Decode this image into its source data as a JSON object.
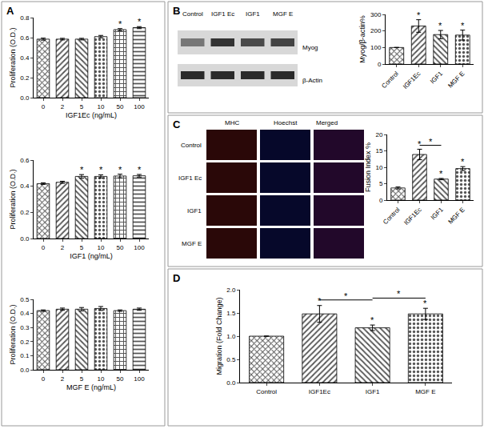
{
  "chart_data": [
    {
      "type": "bar",
      "xlabel": "IGF1Ec (ng/mL)",
      "ylabel": "Proliferation (O.D.)",
      "categories": [
        "0",
        "2",
        "5",
        "10",
        "50",
        "100"
      ],
      "values": [
        0.585,
        0.585,
        0.585,
        0.61,
        0.68,
        0.7
      ],
      "errors": [
        0.01,
        0.008,
        0.008,
        0.012,
        0.01,
        0.01
      ],
      "significance": [
        null,
        null,
        null,
        null,
        "*",
        "*"
      ],
      "ylim": [
        0,
        0.8
      ],
      "yticks": [
        {
          "value": 0,
          "label": "0.0"
        },
        0.2,
        0.4,
        0.6,
        0.8
      ],
      "color": "#555555",
      "grid": false
    },
    {
      "type": "bar",
      "xlabel": "IGF1 (ng/mL)",
      "ylabel": "Proliferation (O.D.)",
      "categories": [
        "0",
        "2",
        "5",
        "10",
        "50",
        "100"
      ],
      "values": [
        0.42,
        0.43,
        0.475,
        0.475,
        0.478,
        0.48
      ],
      "errors": [
        0.006,
        0.008,
        0.014,
        0.012,
        0.014,
        0.01
      ],
      "significance": [
        null,
        null,
        "*",
        "*",
        "*",
        "*"
      ],
      "ylim": [
        0,
        0.6
      ],
      "yticks": [
        {
          "value": 0,
          "label": "0.0"
        },
        0.2,
        0.4,
        0.6
      ],
      "color": "#555555",
      "grid": false
    },
    {
      "type": "bar",
      "xlabel": "MGF E (ng/mL)",
      "ylabel": "Proliferation (O.D.)",
      "categories": [
        "0",
        "2",
        "5",
        "10",
        "50",
        "100"
      ],
      "values": [
        0.42,
        0.43,
        0.43,
        0.435,
        0.42,
        0.43
      ],
      "errors": [
        0.005,
        0.008,
        0.012,
        0.014,
        0.005,
        0.008
      ],
      "ylim": [
        0,
        0.5
      ],
      "yticks": [
        {
          "value": 0,
          "label": "0.0"
        },
        0.1,
        0.2,
        0.3,
        0.4,
        0.5
      ],
      "color": "#555555",
      "grid": false
    },
    {
      "type": "bar",
      "ylabel": "Myog/β-actin%",
      "categories": [
        "Control",
        "IGF1Ec",
        "IGF1",
        "MGF E"
      ],
      "values": [
        100,
        230,
        178,
        175
      ],
      "errors": [
        0,
        38,
        25,
        30
      ],
      "significance": [
        null,
        "*",
        "*",
        "*"
      ],
      "ylim": [
        0,
        300
      ],
      "yticks": [
        0,
        100,
        200,
        300
      ],
      "color": "#555555",
      "grid": false
    },
    {
      "type": "bar",
      "ylabel": "Fusion Index %",
      "categories": [
        "Control",
        "IGF1Ec",
        "IGF1",
        "MGF E"
      ],
      "values": [
        3.7,
        13.9,
        6.4,
        9.6
      ],
      "errors": [
        0.3,
        1.6,
        0.2,
        0.6
      ],
      "significance": [
        null,
        "*",
        "*",
        "*"
      ],
      "comparisons": [
        {
          "from": "IGF1Ec",
          "to": "IGF1",
          "label": "*"
        }
      ],
      "ylim": [
        0,
        20
      ],
      "yticks": [
        0,
        5,
        10,
        15,
        20
      ],
      "color": "#555555",
      "grid": false
    },
    {
      "type": "bar",
      "ylabel": "Migration (Fold Change)",
      "categories": [
        "Control",
        "IGF1Ec",
        "IGF1",
        "MGF E"
      ],
      "values": [
        1.0,
        1.48,
        1.18,
        1.48
      ],
      "errors": [
        0,
        0.18,
        0.06,
        0.12
      ],
      "significance": [
        null,
        "*",
        "*",
        "*"
      ],
      "comparisons": [
        {
          "from": "IGF1Ec",
          "to": "IGF1",
          "label": "*"
        },
        {
          "from": "IGF1",
          "to": "MGF E",
          "label": "*"
        }
      ],
      "ylim": [
        0,
        2
      ],
      "yticks": [
        {
          "value": 0,
          "label": "0.0"
        },
        0.5,
        {
          "value": 1,
          "label": "1.0"
        },
        1.5,
        {
          "value": 2,
          "label": "2.0"
        }
      ],
      "color": "#555555",
      "grid": false
    }
  ],
  "panels": {
    "labels": [
      "A",
      "B",
      "C",
      "D"
    ],
    "blot": {
      "lanes": [
        "Control",
        "IGF1 Ec",
        "IGF1",
        "MGF E"
      ],
      "bands": [
        "Myog",
        "β-Actin"
      ]
    },
    "micrographs": {
      "columns": [
        "MHC",
        "Hoechst",
        "Merged"
      ],
      "rows": [
        "Control",
        "IGF1 Ec",
        "IGF1",
        "MGF E"
      ]
    }
  }
}
